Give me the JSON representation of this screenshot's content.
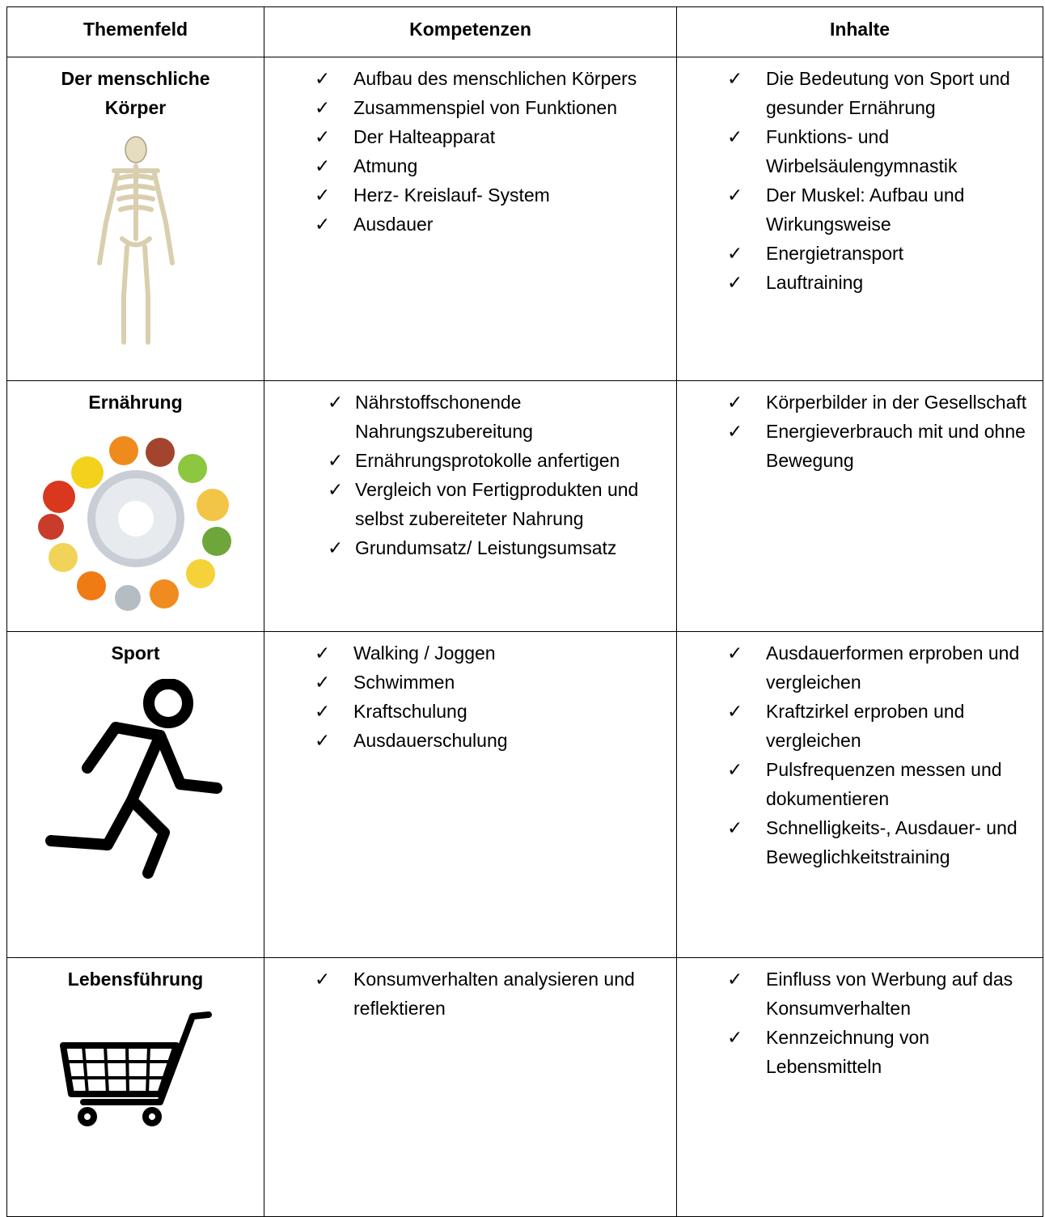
{
  "table": {
    "headers": [
      "Themenfeld",
      "Kompetenzen",
      "Inhalte"
    ],
    "rows": [
      {
        "topic": "Der menschliche Körper",
        "kompetenzen": [
          "Aufbau des menschlichen Körpers",
          "Zusammenspiel von Funktionen",
          "Der Halteapparat",
          "Atmung",
          "Herz- Kreislauf- System",
          "Ausdauer"
        ],
        "inhalte": [
          "Die Bedeutung von Sport und gesunder Ernährung",
          "Funktions- und Wirbelsäulengymnastik",
          "Der Muskel: Aufbau und Wirkungsweise",
          "Energietransport",
          "Lauftraining"
        ]
      },
      {
        "topic": "Ernährung",
        "kompetenzen": [
          "Nährstoffschonende Nahrungszubereitung",
          "Ernährungsprotokolle anfertigen",
          "Vergleich von Fertigprodukten und selbst zubereiteter Nahrung",
          "Grundumsatz/ Leistungsumsatz"
        ],
        "inhalte": [
          "Körperbilder in der Gesellschaft",
          "Energieverbrauch mit und ohne Bewegung"
        ]
      },
      {
        "topic": "Sport",
        "kompetenzen": [
          "Walking / Joggen",
          "Schwimmen",
          "Kraftschulung",
          "Ausdauerschulung"
        ],
        "inhalte": [
          "Ausdauerformen erproben und vergleichen",
          "Kraftzirkel erproben und vergleichen",
          "Pulsfrequenzen messen und dokumentieren",
          "Schnelligkeits-, Ausdauer- und Beweglichkeitstraining"
        ]
      },
      {
        "topic": "Lebensführung",
        "kompetenzen": [
          "Konsumverhalten analysieren und reflektieren"
        ],
        "inhalte": [
          "Einfluss von Werbung auf das Konsumverhalten",
          "Kennzeichnung von Lebensmitteln"
        ]
      }
    ]
  }
}
